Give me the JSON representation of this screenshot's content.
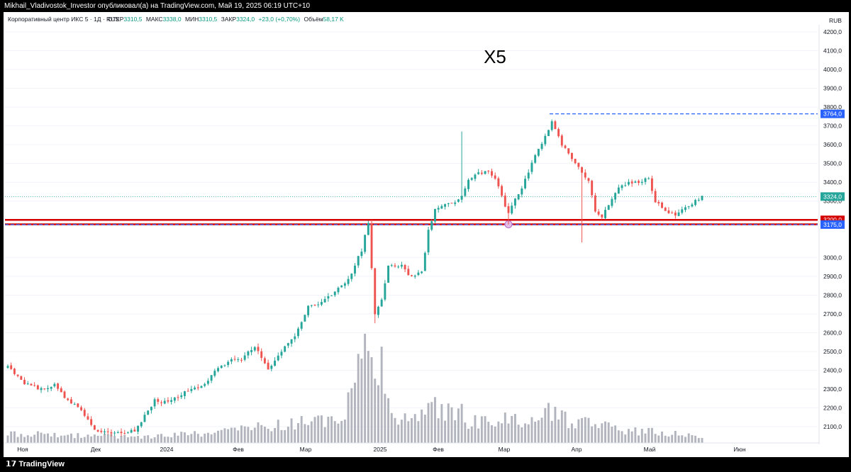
{
  "header": {
    "author_line": "Mikhail_Vladivostok_Investor опубликовал(а) на TradingView.com, Май 19, 2025 06:19 UTC+10"
  },
  "legend": {
    "symbol": "Корпоративный центр ИКС 5 · 1Д · RUS",
    "open_label": "ОТКР",
    "open": "3310,5",
    "high_label": "МАКС",
    "high": "3338,0",
    "low_label": "МИН",
    "low": "3310,5",
    "close_label": "ЗАКР",
    "close": "3324,0",
    "change": "+23,0 (+0,70%)",
    "volume_label": "Объём",
    "volume": "58,17 K"
  },
  "footer": {
    "logo": "TradingView"
  },
  "colors": {
    "up": "#26a69a",
    "down": "#ef5350",
    "volume": "#b2b5be",
    "level_line": "#d40000",
    "dash_line": "#2962ff",
    "last_price": "#26a69a"
  },
  "chart_data": {
    "type": "candlestick",
    "title": "X5",
    "currency": "RUB",
    "y_range": [
      2050,
      4250
    ],
    "y_ticks": [
      "4200,0",
      "4100,0",
      "4000,0",
      "3900,0",
      "3800,0",
      "3700,0",
      "3600,0",
      "3500,0",
      "3400,0",
      "3300,0",
      "3000,0",
      "2900,0",
      "2800,0",
      "2700,0",
      "2600,0",
      "2500,0",
      "2400,0",
      "2300,0",
      "2200,0",
      "2100,0"
    ],
    "x_ticks": [
      "Ноя",
      "Дек",
      "2024",
      "Фев",
      "Мар",
      "2025",
      "Фев",
      "Мар",
      "Апр",
      "Май",
      "Июн"
    ],
    "horizontal_levels": [
      {
        "label": "3200,0",
        "value": 3200,
        "style": "solid",
        "color": "#d40000"
      },
      {
        "label": "3176,5",
        "value": 3176.5,
        "style": "solid",
        "color": "#d40000"
      },
      {
        "label": "3175,0",
        "value": 3175,
        "style": "dashed",
        "color": "#2962ff"
      },
      {
        "label": "3764,0",
        "value": 3764,
        "style": "dashed",
        "color": "#2962ff"
      }
    ],
    "last_price": {
      "label": "3324,0",
      "value": 3324
    },
    "close_anchors": [
      [
        0,
        2420
      ],
      [
        5,
        2330
      ],
      [
        10,
        2300
      ],
      [
        14,
        2320
      ],
      [
        18,
        2240
      ],
      [
        22,
        2190
      ],
      [
        26,
        2080
      ],
      [
        32,
        2060
      ],
      [
        38,
        2080
      ],
      [
        40,
        2130
      ],
      [
        44,
        2240
      ],
      [
        48,
        2230
      ],
      [
        54,
        2290
      ],
      [
        58,
        2310
      ],
      [
        62,
        2390
      ],
      [
        66,
        2450
      ],
      [
        70,
        2460
      ],
      [
        74,
        2530
      ],
      [
        78,
        2400
      ],
      [
        82,
        2500
      ],
      [
        86,
        2580
      ],
      [
        90,
        2740
      ],
      [
        94,
        2760
      ],
      [
        98,
        2820
      ],
      [
        102,
        2880
      ],
      [
        106,
        3040
      ],
      [
        108,
        3190
      ],
      [
        110,
        2700
      ],
      [
        112,
        2780
      ],
      [
        114,
        2950
      ],
      [
        118,
        2960
      ],
      [
        120,
        2900
      ],
      [
        124,
        2920
      ],
      [
        126,
        3140
      ],
      [
        128,
        3260
      ],
      [
        132,
        3280
      ],
      [
        136,
        3320
      ],
      [
        138,
        3420
      ],
      [
        140,
        3440
      ],
      [
        144,
        3460
      ],
      [
        146,
        3420
      ],
      [
        150,
        3230
      ],
      [
        152,
        3310
      ],
      [
        154,
        3360
      ],
      [
        156,
        3460
      ],
      [
        158,
        3540
      ],
      [
        162,
        3680
      ],
      [
        163,
        3720
      ],
      [
        166,
        3600
      ],
      [
        170,
        3500
      ],
      [
        174,
        3400
      ],
      [
        176,
        3250
      ],
      [
        178,
        3220
      ],
      [
        182,
        3340
      ],
      [
        184,
        3390
      ],
      [
        188,
        3400
      ],
      [
        192,
        3420
      ],
      [
        194,
        3300
      ],
      [
        198,
        3230
      ],
      [
        200,
        3230
      ],
      [
        204,
        3270
      ],
      [
        208,
        3324
      ]
    ],
    "wick_spikes": [
      {
        "i": 110,
        "low": 2650
      },
      {
        "i": 136,
        "high": 3670
      },
      {
        "i": 150,
        "low": 3175
      },
      {
        "i": 172,
        "low": 3080
      }
    ],
    "volume_anchors": [
      [
        0,
        0.09
      ],
      [
        20,
        0.07
      ],
      [
        40,
        0.06
      ],
      [
        60,
        0.09
      ],
      [
        90,
        0.2
      ],
      [
        100,
        0.2
      ],
      [
        108,
        0.85
      ],
      [
        110,
        0.5
      ],
      [
        112,
        0.85
      ],
      [
        114,
        0.4
      ],
      [
        118,
        0.2
      ],
      [
        124,
        0.25
      ],
      [
        126,
        0.45
      ],
      [
        130,
        0.3
      ],
      [
        136,
        0.28
      ],
      [
        138,
        0.2
      ],
      [
        146,
        0.2
      ],
      [
        150,
        0.22
      ],
      [
        158,
        0.2
      ],
      [
        162,
        0.35
      ],
      [
        164,
        0.25
      ],
      [
        170,
        0.2
      ],
      [
        176,
        0.2
      ],
      [
        182,
        0.12
      ],
      [
        196,
        0.1
      ],
      [
        208,
        0.05
      ]
    ],
    "volume_bar_count": 209
  }
}
